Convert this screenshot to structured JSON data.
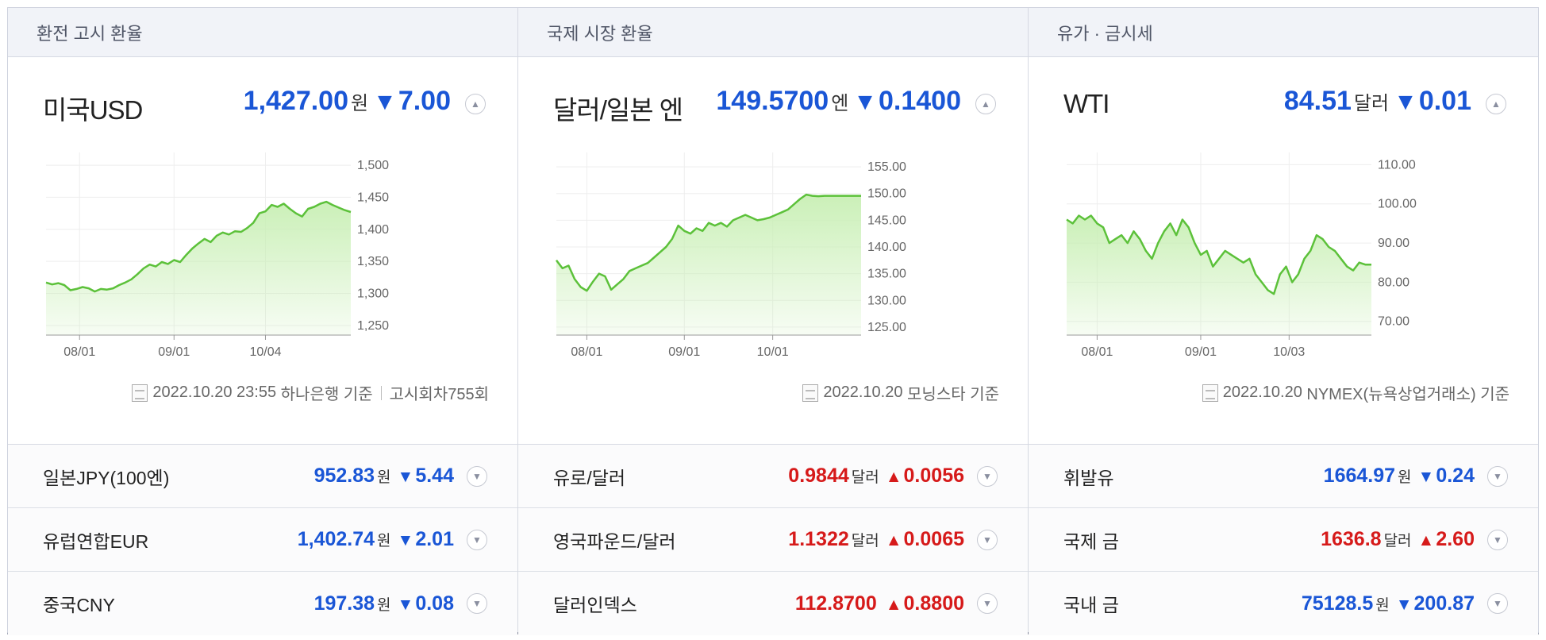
{
  "columns": [
    {
      "header": "환전 고시 환율",
      "main": {
        "title": "미국USD",
        "value": "1,427.00",
        "unit": "원",
        "direction": "down",
        "change": "7.00",
        "source_date": "2022.10.20 23:55",
        "source_name": "하나은행 기준",
        "source_extra": "고시회차755회"
      },
      "chart_data": {
        "type": "area",
        "x_ticks": [
          "08/01",
          "09/01",
          "10/04"
        ],
        "y_ticks": [
          "1,500",
          "1,450",
          "1,400",
          "1,350",
          "1,300",
          "1,250"
        ],
        "ylim": [
          1235,
          1510
        ],
        "x": [
          0,
          2,
          4,
          6,
          8,
          10,
          12,
          14,
          16,
          18,
          20,
          22,
          24,
          26,
          28,
          30,
          32,
          34,
          36,
          38,
          40,
          42,
          44,
          46,
          48,
          50,
          52,
          54,
          56,
          58,
          60,
          62,
          64,
          66,
          68,
          70,
          72,
          74,
          76,
          78,
          80,
          82,
          84,
          86,
          88,
          90,
          92,
          94,
          96,
          98,
          100
        ],
        "values": [
          1317,
          1314,
          1316,
          1313,
          1305,
          1307,
          1310,
          1308,
          1303,
          1307,
          1306,
          1308,
          1313,
          1317,
          1322,
          1330,
          1339,
          1345,
          1342,
          1349,
          1346,
          1352,
          1349,
          1360,
          1370,
          1378,
          1385,
          1380,
          1390,
          1395,
          1392,
          1397,
          1396,
          1402,
          1410,
          1425,
          1428,
          1438,
          1435,
          1440,
          1432,
          1425,
          1420,
          1432,
          1435,
          1440,
          1443,
          1438,
          1434,
          1430,
          1427
        ],
        "line_color": "#5cc13a",
        "fill_color": "#c8efb4"
      }
    },
    {
      "header": "국제 시장 환율",
      "main": {
        "title": "달러/일본 엔",
        "value": "149.5700",
        "unit": "엔",
        "direction": "down",
        "change": "0.1400",
        "source_date": "2022.10.20",
        "source_name": "모닝스타 기준",
        "source_extra": ""
      },
      "chart_data": {
        "type": "area",
        "x_ticks": [
          "08/01",
          "09/01",
          "10/01"
        ],
        "y_ticks": [
          "155.00",
          "150.00",
          "145.00",
          "140.00",
          "135.00",
          "130.00",
          "125.00"
        ],
        "ylim": [
          123.5,
          156.5
        ],
        "x": [
          0,
          2,
          4,
          6,
          8,
          10,
          12,
          14,
          16,
          18,
          20,
          22,
          24,
          26,
          28,
          30,
          32,
          34,
          36,
          38,
          40,
          42,
          44,
          46,
          48,
          50,
          52,
          54,
          56,
          58,
          60,
          62,
          64,
          66,
          68,
          70,
          72,
          74,
          76,
          78,
          80,
          82,
          84,
          86,
          88,
          90,
          92,
          94,
          96,
          98,
          100
        ],
        "values": [
          137.5,
          136,
          136.5,
          134,
          132.5,
          131.8,
          133.5,
          135,
          134.5,
          132,
          133,
          134,
          135.5,
          136,
          136.5,
          137,
          138,
          139,
          140,
          141.5,
          144,
          143,
          142.5,
          143.5,
          143,
          144.5,
          144,
          144.5,
          143.8,
          145,
          145.5,
          146,
          145.5,
          145,
          145.2,
          145.5,
          146,
          146.5,
          147,
          148,
          149,
          149.8,
          149.57,
          149.5,
          149.57,
          149.57,
          149.57,
          149.57,
          149.57,
          149.57,
          149.57
        ],
        "line_color": "#5cc13a",
        "fill_color": "#c8efb4"
      }
    },
    {
      "header": "유가 · 금시세",
      "main": {
        "title": "WTI",
        "value": "84.51",
        "unit": "달러",
        "direction": "down",
        "change": "0.01",
        "source_date": "2022.10.20",
        "source_name": "NYMEX(뉴욕상업거래소) 기준",
        "source_extra": ""
      },
      "chart_data": {
        "type": "area",
        "x_ticks": [
          "08/01",
          "09/01",
          "10/03"
        ],
        "y_ticks": [
          "110.00",
          "100.00",
          "90.00",
          "80.00",
          "70.00"
        ],
        "ylim": [
          66.5,
          111.5
        ],
        "x": [
          0,
          2,
          4,
          6,
          8,
          10,
          12,
          14,
          16,
          18,
          20,
          22,
          24,
          26,
          28,
          30,
          32,
          34,
          36,
          38,
          40,
          42,
          44,
          46,
          48,
          50,
          52,
          54,
          56,
          58,
          60,
          62,
          64,
          66,
          68,
          70,
          72,
          74,
          76,
          78,
          80,
          82,
          84,
          86,
          88,
          90,
          92,
          94,
          96,
          98,
          100
        ],
        "values": [
          96,
          95,
          97,
          96,
          97,
          95,
          94,
          90,
          91,
          92,
          90,
          93,
          91,
          88,
          86,
          90,
          93,
          95,
          92,
          96,
          94,
          90,
          87,
          88,
          84,
          86,
          88,
          87,
          86,
          85,
          86,
          82,
          80,
          78,
          77,
          82,
          84,
          80,
          82,
          86,
          88,
          92,
          91,
          89,
          88,
          86,
          84,
          83,
          85,
          84.5,
          84.51
        ],
        "line_color": "#5cc13a",
        "fill_color": "#c8efb4"
      }
    }
  ],
  "rows": [
    [
      {
        "name": "일본JPY(100엔)",
        "value": "952.83",
        "unit": "원",
        "direction": "down",
        "change": "5.44"
      },
      {
        "name": "유럽연합EUR",
        "value": "1,402.74",
        "unit": "원",
        "direction": "down",
        "change": "2.01"
      },
      {
        "name": "중국CNY",
        "value": "197.38",
        "unit": "원",
        "direction": "down",
        "change": "0.08"
      }
    ],
    [
      {
        "name": "유로/달러",
        "value": "0.9844",
        "unit": "달러",
        "direction": "up",
        "change": "0.0056"
      },
      {
        "name": "영국파운드/달러",
        "value": "1.1322",
        "unit": "달러",
        "direction": "up",
        "change": "0.0065"
      },
      {
        "name": "달러인덱스",
        "value": "112.8700",
        "unit": "",
        "direction": "up",
        "change": "0.8800"
      }
    ],
    [
      {
        "name": "휘발유",
        "value": "1664.97",
        "unit": "원",
        "direction": "down",
        "change": "0.24"
      },
      {
        "name": "국제 금",
        "value": "1636.8",
        "unit": "달러",
        "direction": "up",
        "change": "2.60"
      },
      {
        "name": "국내 금",
        "value": "75128.5",
        "unit": "원",
        "direction": "down",
        "change": "200.87"
      }
    ]
  ],
  "icons": {
    "down_arrow": "▼",
    "up_arrow": "▲",
    "toggle_up": "▲",
    "toggle_down": "▼"
  },
  "colors": {
    "down": "#1a56d6",
    "up": "#d61a1a"
  }
}
